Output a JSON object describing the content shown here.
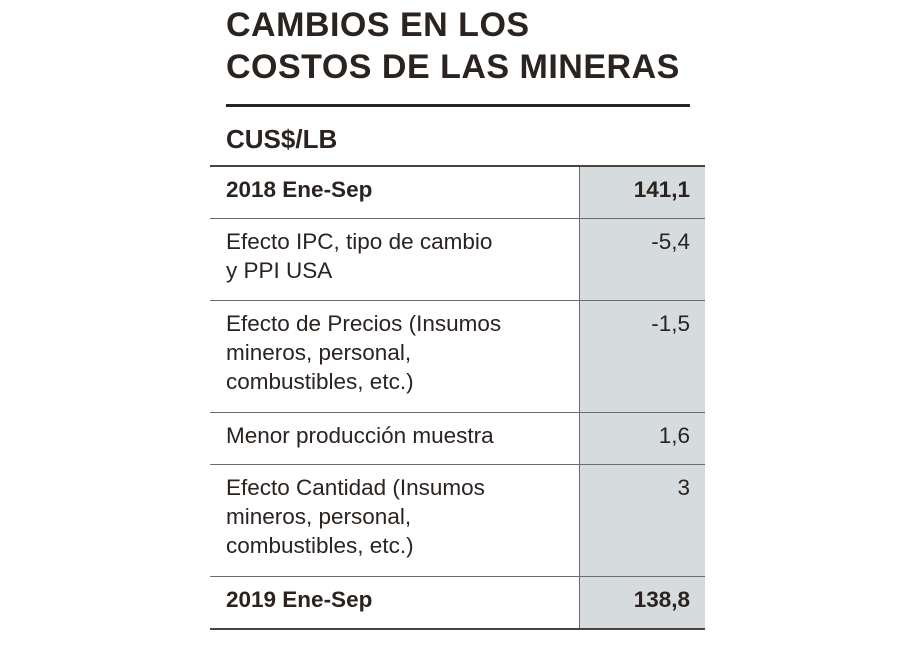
{
  "title_lines": [
    "CAMBIOS EN LOS",
    "COSTOS DE LAS MINERAS"
  ],
  "unit": "CUS$/LB",
  "colors": {
    "text": "#2a2320",
    "value_column_bg": "#d6dcdd",
    "rule": "#2a2320"
  },
  "chart_data": {
    "type": "table",
    "title": "CAMBIOS EN LOS COSTOS DE LAS MINERAS",
    "unit": "CUS$/LB",
    "rows": [
      {
        "label": "2018 Ene-Sep",
        "value": "141,1"
      },
      {
        "label": "Efecto IPC, tipo de cambio\ny PPI USA",
        "value": "-5,4"
      },
      {
        "label": "Efecto de Precios (Insumos\nmineros, personal,\ncombustibles, etc.)",
        "value": "-1,5"
      },
      {
        "label": "Menor producción muestra",
        "value": "1,6"
      },
      {
        "label": "Efecto Cantidad (Insumos\nmineros, personal,\ncombustibles, etc.)",
        "value": "3"
      },
      {
        "label": "2019 Ene-Sep",
        "value": "138,8"
      }
    ]
  }
}
